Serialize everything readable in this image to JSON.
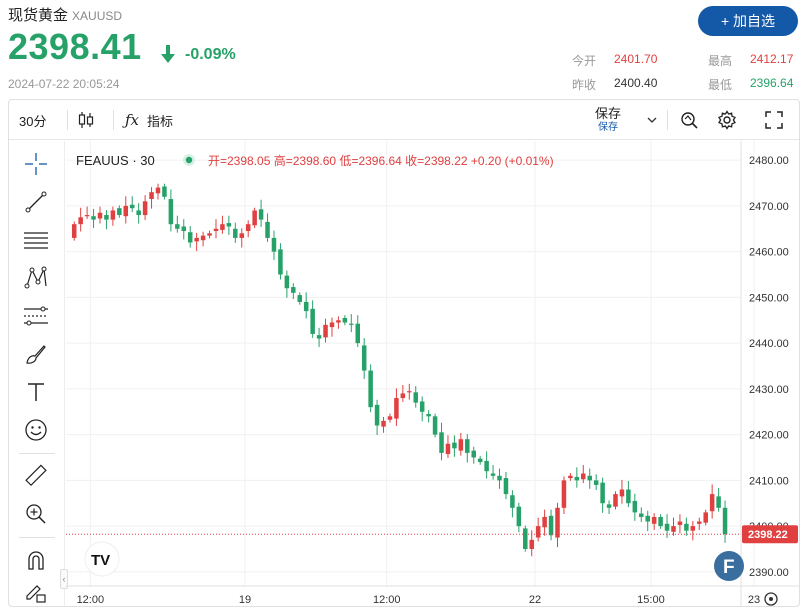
{
  "header": {
    "name": "现货黄金",
    "code": "XAUUSD",
    "price": "2398.41",
    "change_pct": "-0.09%",
    "timestamp": "2024-07-22 20:05:24",
    "add_button": "+ 加自选"
  },
  "stats": {
    "open_label": "今开",
    "open": "2401.70",
    "prev_close_label": "昨收",
    "prev_close": "2400.40",
    "high_label": "最高",
    "high": "2412.17",
    "low_label": "最低",
    "low": "2396.64"
  },
  "toolbar": {
    "interval": "30分",
    "indicators": "指标",
    "save": "保存",
    "save_sub": "保存"
  },
  "legend": {
    "symbol": "FEAUUS · 30",
    "ohlc": "开=2398.05 高=2398.60 低=2396.64 收=2398.22 +0.20 (+0.01%)"
  },
  "colors": {
    "up": "#26a269",
    "down": "#e04040",
    "accent": "#1458a8"
  },
  "icons": [
    "crosshair-icon",
    "trend-line-icon",
    "horizontal-lines-icon",
    "pattern-icon",
    "fib-icon",
    "brush-icon",
    "text-icon",
    "emoji-icon",
    "ruler-icon",
    "zoom-in-icon",
    "magnet-icon",
    "lock-pencil-icon",
    "candle-type-icon",
    "fx-icon",
    "snapshot-icon",
    "settings-icon",
    "fullscreen-icon",
    "chevron-down-icon",
    "tv-logo-icon",
    "f-badge-icon",
    "gear-icon"
  ],
  "chart_data": {
    "type": "candlestick",
    "y_ticks": [
      "2480.00",
      "2470.00",
      "2460.00",
      "2450.00",
      "2440.00",
      "2430.00",
      "2420.00",
      "2410.00",
      "2400.00",
      "2390.00"
    ],
    "ylim": [
      2388,
      2482
    ],
    "x_ticks": [
      "12:00",
      "19",
      "12:00",
      "22",
      "15:00",
      "23"
    ],
    "last_price_label": "2398.22",
    "last_price": 2398.22,
    "close_series": [
      2466,
      2467.5,
      2468,
      2467,
      2468.5,
      2467,
      2469,
      2468,
      2470,
      2469.5,
      2468,
      2471,
      2473,
      2474,
      2472,
      2466,
      2465,
      2464.5,
      2462,
      2463,
      2463.5,
      2464,
      2465,
      2466,
      2465.5,
      2463,
      2464,
      2466,
      2469,
      2467,
      2463,
      2460,
      2455,
      2452,
      2451,
      2449,
      2447,
      2442,
      2441,
      2444,
      2444.5,
      2445,
      2444.5,
      2444,
      2440,
      2434,
      2426,
      2422,
      2423,
      2424,
      2428,
      2429,
      2429.5,
      2427,
      2425,
      2424,
      2420,
      2416,
      2418,
      2417,
      2419,
      2416,
      2415,
      2414,
      2412,
      2411,
      2410,
      2407,
      2404,
      2400,
      2395,
      2397,
      2400,
      2402,
      2398,
      2404,
      2410,
      2411,
      2410,
      2411.5,
      2410,
      2409,
      2405,
      2404,
      2407,
      2408,
      2405,
      2403,
      2402,
      2401,
      2402,
      2400,
      2399,
      2400,
      2401,
      2399,
      2400,
      2401,
      2403,
      2407,
      2404,
      2398.22
    ]
  }
}
